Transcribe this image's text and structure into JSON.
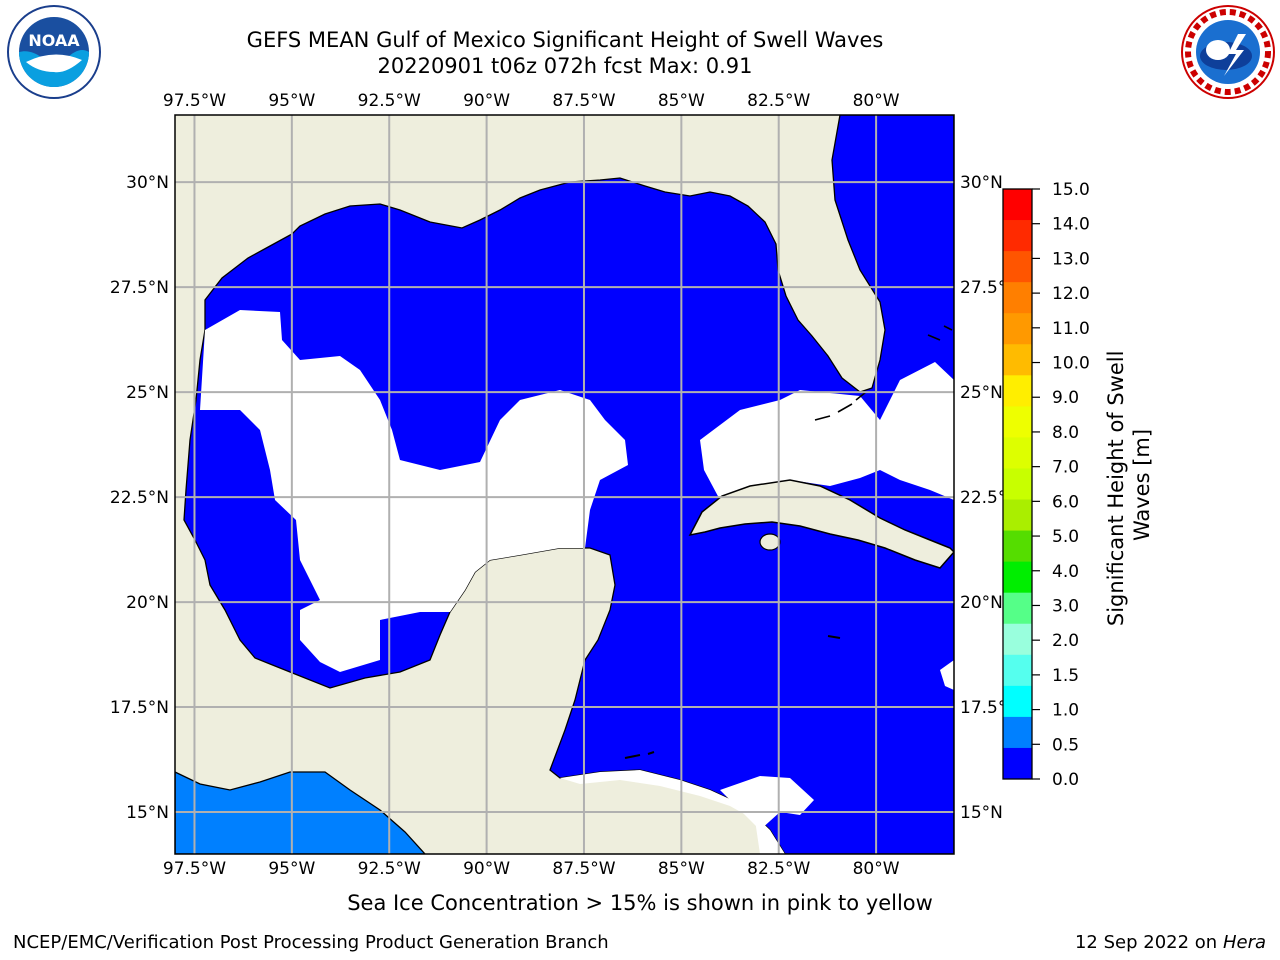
{
  "header": {
    "title_line1": "GEFS MEAN Gulf of Mexico Significant Height of Swell Waves",
    "title_line2": "20220901 t06z 072h fcst   Max: 0.91"
  },
  "logos": {
    "left": {
      "icon": "noaa-logo",
      "text": "NOAA"
    },
    "right": {
      "icon": "national-weather-service-logo"
    }
  },
  "map": {
    "longitude_labels": [
      "97.5°W",
      "95°W",
      "92.5°W",
      "90°W",
      "87.5°W",
      "85°W",
      "82.5°W",
      "80°W"
    ],
    "latitude_labels": [
      "30°N",
      "27.5°N",
      "25°N",
      "22.5°N",
      "20°N",
      "17.5°N",
      "15°N"
    ],
    "lon_range": [
      -98,
      -78
    ],
    "lat_range": [
      14,
      31.6
    ],
    "colors": {
      "land": "#eeeedd",
      "wave_0_0p5": "#0000ff",
      "wave_0p5_1": "#0080ff",
      "no_data": "#ffffff",
      "gridlines": "#b0b0b0",
      "coastline": "#000000"
    }
  },
  "colorbar": {
    "label": "Significant Height of Swell Waves [m]",
    "ticks": [
      "15.0",
      "14.0",
      "13.0",
      "12.0",
      "11.0",
      "10.0",
      "9.0",
      "8.0",
      "7.0",
      "6.0",
      "5.0",
      "4.0",
      "3.0",
      "2.0",
      "1.5",
      "1.0",
      "0.5",
      "0.0"
    ],
    "colors": [
      "#ff0000",
      "#ff2a00",
      "#ff5500",
      "#ff7f00",
      "#ff9900",
      "#ffbb00",
      "#ffee00",
      "#eeff00",
      "#ddff00",
      "#c8ff00",
      "#aaee00",
      "#55dd00",
      "#00ee00",
      "#55ff88",
      "#99ffdd",
      "#55ffee",
      "#00ffff",
      "#0080ff",
      "#0000ff"
    ]
  },
  "footer": {
    "caption": "Sea Ice Concentration > 15% is shown in pink to yellow",
    "credit": "NCEP/EMC/Verification Post Processing Product Generation Branch",
    "date_prefix": "12 Sep 2022 on",
    "machine": "Hera"
  }
}
